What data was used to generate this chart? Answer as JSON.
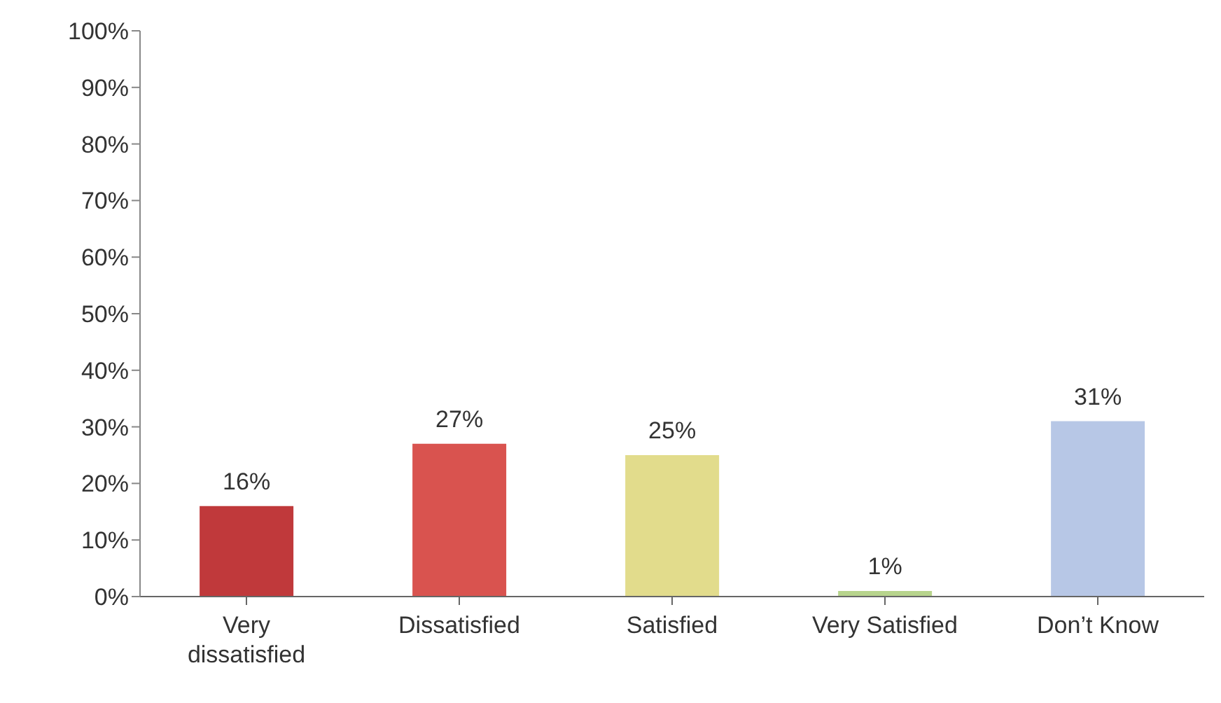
{
  "chart_data": {
    "type": "bar",
    "categories": [
      "Very dissatisfied",
      "Dissatisfied",
      "Satisfied",
      "Very Satisfied",
      "Don’t Know"
    ],
    "values": [
      16,
      27,
      25,
      1,
      31
    ],
    "value_labels": [
      "16%",
      "27%",
      "25%",
      "1%",
      "31%"
    ],
    "colors": [
      "#c0393b",
      "#d9534f",
      "#e2dc8c",
      "#b7d48c",
      "#b7c7e6"
    ],
    "ylim": [
      0,
      100
    ],
    "yticks": [
      {
        "value": 0,
        "label": "0%"
      },
      {
        "value": 10,
        "label": "10%"
      },
      {
        "value": 20,
        "label": "20%"
      },
      {
        "value": 30,
        "label": "30%"
      },
      {
        "value": 40,
        "label": "40%"
      },
      {
        "value": 50,
        "label": "50%"
      },
      {
        "value": 60,
        "label": "60%"
      },
      {
        "value": 70,
        "label": "70%"
      },
      {
        "value": 80,
        "label": "80%"
      },
      {
        "value": 90,
        "label": "90%"
      },
      {
        "value": 100,
        "label": "100%"
      }
    ],
    "grid": false,
    "legend": false
  }
}
